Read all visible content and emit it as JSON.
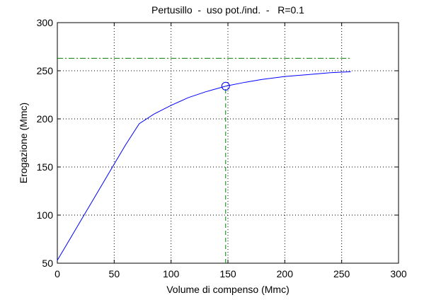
{
  "chart_data": {
    "type": "line",
    "title": "Pertusillo  -  uso pot./ind.  -   R=0.1",
    "xlabel": "Volume di compenso (Mmc)",
    "ylabel": "Erogazione (Mmc)",
    "xlim": [
      0,
      300
    ],
    "ylim": [
      50,
      300
    ],
    "xticks": [
      0,
      50,
      100,
      150,
      200,
      250,
      300
    ],
    "yticks": [
      50,
      100,
      150,
      200,
      250,
      300
    ],
    "grid": true,
    "series": [
      {
        "color": "#0000ff",
        "style": "solid",
        "x": [
          0,
          10,
          20,
          30,
          40,
          50,
          60,
          72,
          85,
          100,
          115,
          130,
          148,
          165,
          180,
          200,
          220,
          240,
          258
        ],
        "values": [
          53,
          73,
          93,
          113,
          133,
          153,
          173,
          195,
          205,
          214,
          222,
          228,
          234,
          238,
          241,
          244,
          246,
          248,
          249
        ]
      },
      {
        "color": "#008000",
        "style": "dashdot",
        "x": [
          0,
          257
        ],
        "values": [
          263,
          263
        ]
      },
      {
        "color": "#008000",
        "style": "dashed",
        "x": [
          148,
          148
        ],
        "values": [
          50,
          234
        ]
      },
      {
        "color": "#0000ff",
        "style": "marker",
        "x": [
          148
        ],
        "values": [
          234
        ]
      }
    ]
  }
}
